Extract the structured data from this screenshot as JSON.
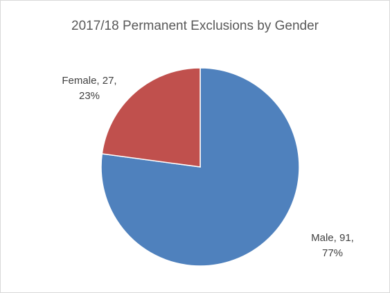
{
  "chart_data": {
    "type": "pie",
    "title": "2017/18 Permanent Exclusions by Gender",
    "slices": [
      {
        "label": "Male",
        "value": 91,
        "percent": "77%",
        "color": "#4f81bd"
      },
      {
        "label": "Female",
        "value": 27,
        "percent": "23%",
        "color": "#c0504d"
      }
    ],
    "data_labels": {
      "male_line1": "Male, 91,",
      "male_line2": "77%",
      "female_line1": "Female, 27,",
      "female_line2": "23%"
    },
    "legend": "none",
    "slice_border_color": "#ffffff"
  }
}
